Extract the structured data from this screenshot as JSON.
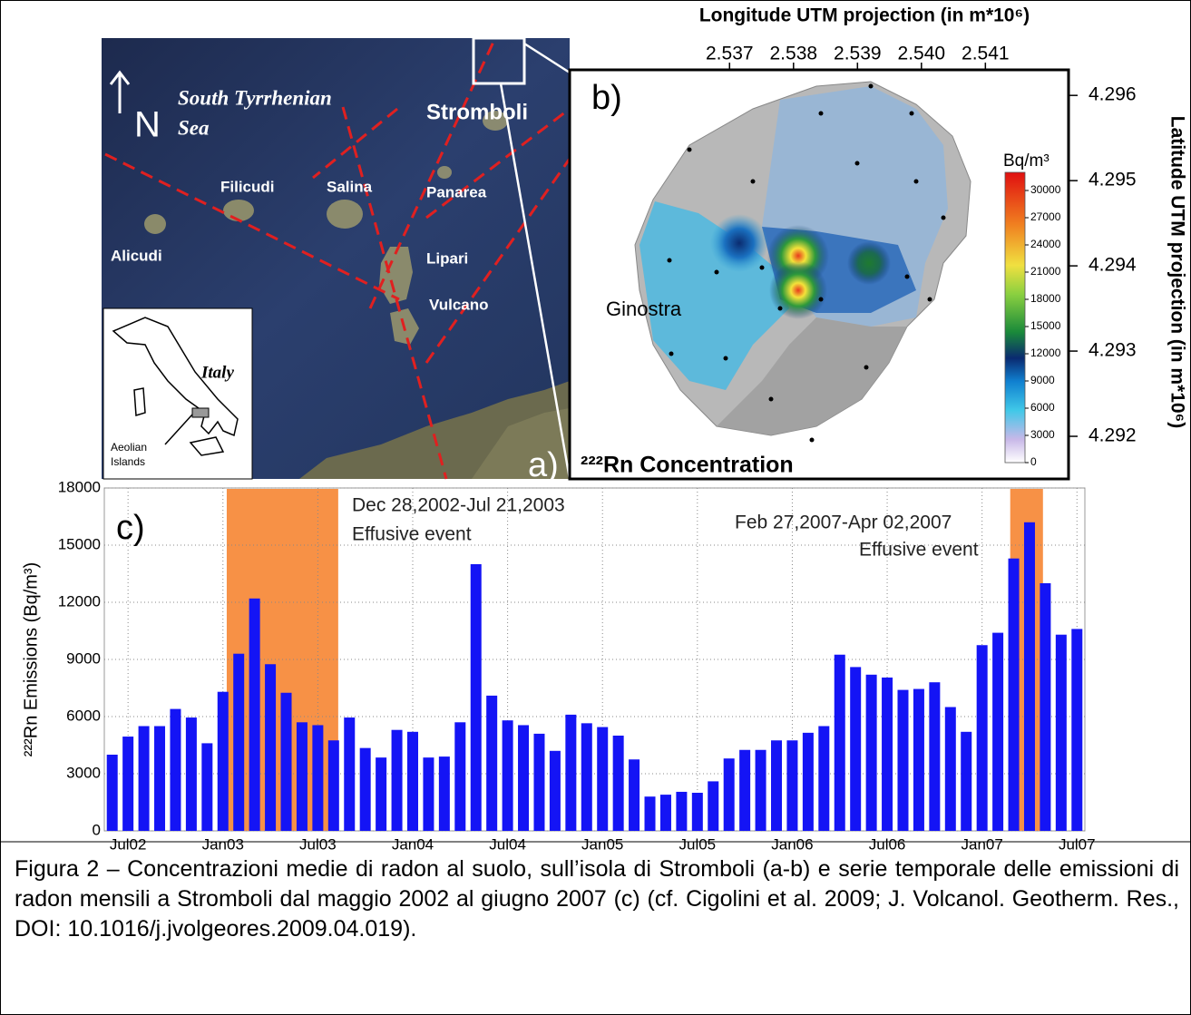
{
  "panel_a": {
    "label": "a)",
    "north": "N",
    "sea_label": [
      "South Tyrrhenian",
      "Sea"
    ],
    "islands": [
      "Stromboli",
      "Filicudi",
      "Salina",
      "Panarea",
      "Alicudi",
      "Lipari",
      "Vulcano"
    ],
    "inset_country": "Italy",
    "inset_region": [
      "Aeolian",
      "Islands"
    ]
  },
  "panel_b": {
    "label": "b)",
    "place": "Ginostra",
    "title": "²²²Rn Concentration",
    "x_title": "Longitude UTM projection (in m*10⁶)",
    "y_title": "Latitude UTM projection (in m*10⁶)",
    "xlim": [
      2.5345,
      2.5423
    ],
    "xticks": [
      2.537,
      2.538,
      2.539,
      2.54,
      2.541
    ],
    "xtick_labels": [
      "2.537",
      "2.538",
      "2.539",
      "2.540",
      "2.541"
    ],
    "ylim": [
      4.2915,
      4.2963
    ],
    "yticks": [
      4.296,
      4.295,
      4.294,
      4.293,
      4.292
    ],
    "colorbar_title": "Bq/m³",
    "clim": [
      0,
      32000
    ],
    "cticks": [
      30000,
      27000,
      24000,
      21000,
      18000,
      15000,
      12000,
      9000,
      6000,
      3000,
      0
    ]
  },
  "chart_data": {
    "type": "bar",
    "label": "c)",
    "y_label": "²²²Rn Emissions (Bq/m³)",
    "color": "#1414f5",
    "categories": [
      null,
      "Jul02",
      null,
      null,
      null,
      null,
      null,
      "Jan03",
      null,
      null,
      null,
      null,
      null,
      "Jul03",
      null,
      null,
      null,
      null,
      null,
      "Jan04",
      null,
      null,
      null,
      null,
      null,
      "Jul04",
      null,
      null,
      null,
      null,
      null,
      "Jan05",
      null,
      null,
      null,
      null,
      null,
      "Jul05",
      null,
      null,
      null,
      null,
      null,
      "Jan06",
      null,
      null,
      null,
      null,
      null,
      "Jul06",
      null,
      null,
      null,
      null,
      null,
      "Jan07",
      null,
      null,
      null,
      null,
      null,
      "Jul07"
    ],
    "values": [
      4000,
      4950,
      5500,
      5500,
      6400,
      5950,
      4600,
      7300,
      9300,
      12200,
      8750,
      7250,
      5700,
      5550,
      4750,
      5950,
      4350,
      3850,
      5300,
      5200,
      3850,
      3900,
      5700,
      14000,
      7100,
      5800,
      5550,
      5100,
      4200,
      6100,
      5650,
      5450,
      5000,
      3750,
      1800,
      1900,
      2050,
      2000,
      2600,
      3800,
      4250,
      4250,
      4750,
      4750,
      5150,
      5500,
      9250,
      8600,
      8200,
      8050,
      7400,
      7450,
      7800,
      6500,
      5200,
      9750,
      10400,
      14300,
      16200,
      13000,
      10300,
      10600
    ],
    "ylim": [
      0,
      18000
    ],
    "yticks": [
      0,
      3000,
      6000,
      9000,
      12000,
      15000,
      18000
    ],
    "grid": true,
    "annotations": [
      "Dec 28,2002-Jul 21,2003",
      "Effusive event",
      "Feb 27,2007-Apr 02,2007",
      "Effusive event"
    ]
  },
  "caption": "Figura 2 – Concentrazioni medie di radon al suolo, sull’isola di Stromboli (a-b) e serie temporale delle emissioni di radon mensili a Stromboli dal maggio 2002 al giugno 2007 (c) (cf. Cigolini et al. 2009; J. Volcanol. Geotherm. Res., DOI: 10.1016/j.jvolgeores.2009.04.019)."
}
